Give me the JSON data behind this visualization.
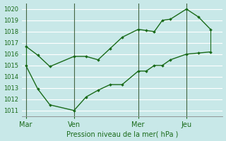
{
  "xlabel": "Pression niveau de la mer( hPa )",
  "background_color": "#c8e8e8",
  "grid_color": "#ffffff",
  "line_color": "#1a6b1a",
  "vline_color": "#446644",
  "ylim": [
    1010.5,
    1020.5
  ],
  "yticks": [
    1011,
    1012,
    1013,
    1014,
    1015,
    1016,
    1017,
    1018,
    1019,
    1020
  ],
  "xtick_labels": [
    "Mar",
    "Ven",
    "Mer",
    "Jeu"
  ],
  "xtick_positions": [
    0,
    24,
    56,
    80
  ],
  "xlim": [
    -2,
    98
  ],
  "series1_x": [
    0,
    6,
    12,
    24,
    30,
    36,
    42,
    48,
    56,
    60,
    64,
    68,
    72,
    80,
    86,
    92
  ],
  "series1_y": [
    1016.7,
    1015.9,
    1014.9,
    1015.8,
    1015.8,
    1015.5,
    1016.5,
    1017.5,
    1018.2,
    1018.1,
    1018.0,
    1019.0,
    1019.1,
    1020.0,
    1019.3,
    1018.2
  ],
  "series2_x": [
    0,
    6,
    12,
    24,
    30,
    36,
    42,
    48,
    56,
    60,
    64,
    68,
    72,
    80,
    86,
    92
  ],
  "series2_y": [
    1015.0,
    1012.9,
    1011.5,
    1011.0,
    1012.2,
    1012.8,
    1013.3,
    1013.3,
    1014.5,
    1014.5,
    1015.0,
    1015.0,
    1015.5,
    1016.0,
    1016.1,
    1016.2
  ],
  "vline_positions": [
    0,
    24,
    56,
    80
  ],
  "ytick_fontsize": 6,
  "xtick_fontsize": 7,
  "xlabel_fontsize": 7
}
